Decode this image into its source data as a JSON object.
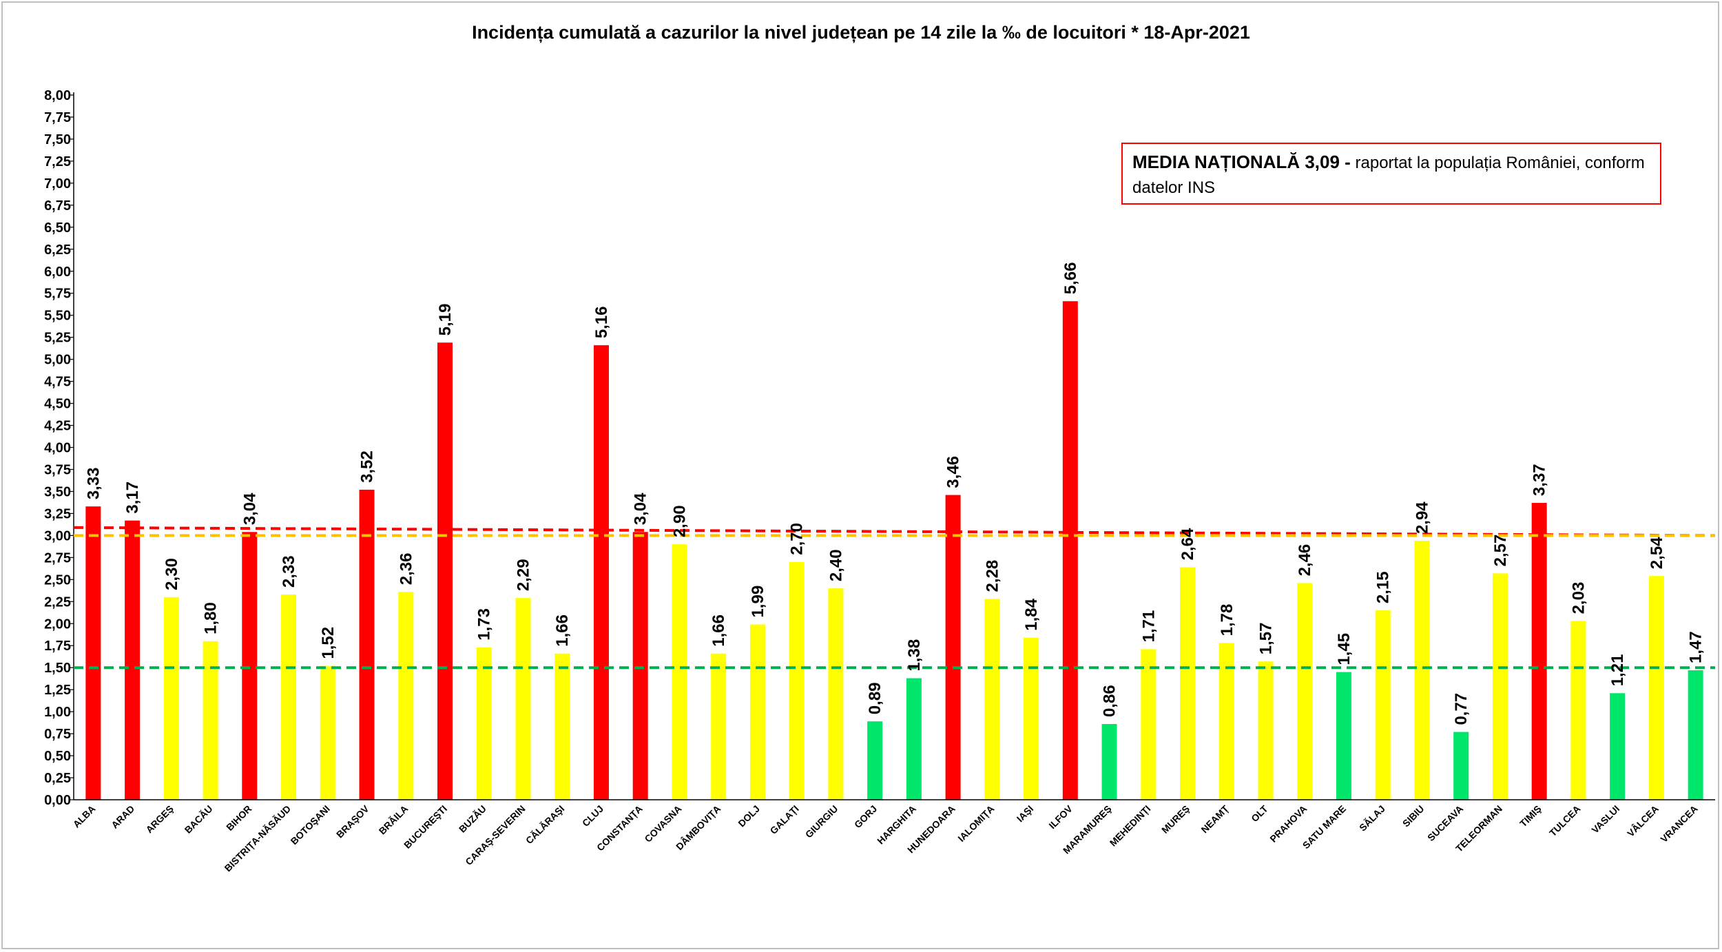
{
  "chart_data": {
    "type": "bar",
    "title": "Incidența cumulată a cazurilor la nivel județean pe 14 zile   la ‰ de locuitori  *   18-Apr-2021",
    "xlabel": "",
    "ylabel": "",
    "ylim": [
      0,
      8
    ],
    "yticks": [
      "0,00",
      "0,25",
      "0,50",
      "0,75",
      "1,00",
      "1,25",
      "1,50",
      "1,75",
      "2,00",
      "2,25",
      "2,50",
      "2,75",
      "3,00",
      "3,25",
      "3,50",
      "3,75",
      "4,00",
      "4,25",
      "4,50",
      "4,75",
      "5,00",
      "5,25",
      "5,50",
      "5,75",
      "6,00",
      "6,25",
      "6,50",
      "6,75",
      "7,00",
      "7,25",
      "7,50",
      "7,75",
      "8,00"
    ],
    "grid": false,
    "legend": "none",
    "categories": [
      "ALBA",
      "ARAD",
      "ARGEŞ",
      "BACĂU",
      "BIHOR",
      "BISTRIȚA-NĂSĂUD",
      "BOTOŞANI",
      "BRAŞOV",
      "BRĂILA",
      "BUCUREŞTI",
      "BUZĂU",
      "CARAŞ-SEVERIN",
      "CĂLĂRAŞI",
      "CLUJ",
      "CONSTANȚA",
      "COVASNA",
      "DÂMBOVIȚA",
      "DOLJ",
      "GALAȚI",
      "GIURGIU",
      "GORJ",
      "HARGHITA",
      "HUNEDOARA",
      "IALOMIȚA",
      "IAŞI",
      "ILFOV",
      "MARAMUREŞ",
      "MEHEDINȚI",
      "MUREŞ",
      "NEAMȚ",
      "OLT",
      "PRAHOVA",
      "SATU MARE",
      "SĂLAJ",
      "SIBIU",
      "SUCEAVA",
      "TELEORMAN",
      "TIMIŞ",
      "TULCEA",
      "VASLUI",
      "VÂLCEA",
      "VRANCEA"
    ],
    "values": [
      3.33,
      3.17,
      2.3,
      1.8,
      3.04,
      2.33,
      1.52,
      3.52,
      2.36,
      5.19,
      1.73,
      2.29,
      1.66,
      5.16,
      3.04,
      2.9,
      1.66,
      1.99,
      2.7,
      2.4,
      0.89,
      1.38,
      3.46,
      2.28,
      1.84,
      5.66,
      0.86,
      1.71,
      2.64,
      1.78,
      1.57,
      2.46,
      1.45,
      2.15,
      2.94,
      0.77,
      2.57,
      3.37,
      2.03,
      1.21,
      2.54,
      1.47
    ],
    "value_labels": [
      "3,33",
      "3,17",
      "2,30",
      "1,80",
      "3,04",
      "2,33",
      "1,52",
      "3,52",
      "2,36",
      "5,19",
      "1,73",
      "2,29",
      "1,66",
      "5,16",
      "3,04",
      "2,90",
      "1,66",
      "1,99",
      "2,70",
      "2,40",
      "0,89",
      "1,38",
      "3,46",
      "2,28",
      "1,84",
      "5,66",
      "0,86",
      "1,71",
      "2,64",
      "1,78",
      "1,57",
      "2,46",
      "1,45",
      "2,15",
      "2,94",
      "0,77",
      "2,57",
      "3,37",
      "2,03",
      "1,21",
      "2,54",
      "1,47"
    ],
    "bar_colors": [
      "red",
      "red",
      "yellow",
      "yellow",
      "red",
      "yellow",
      "yellow",
      "red",
      "yellow",
      "red",
      "yellow",
      "yellow",
      "yellow",
      "red",
      "red",
      "yellow",
      "yellow",
      "yellow",
      "yellow",
      "yellow",
      "green",
      "green",
      "red",
      "yellow",
      "yellow",
      "red",
      "green",
      "yellow",
      "yellow",
      "yellow",
      "yellow",
      "yellow",
      "green",
      "yellow",
      "yellow",
      "green",
      "yellow",
      "red",
      "yellow",
      "green",
      "yellow",
      "green"
    ],
    "reference_lines": [
      {
        "y": 3.09,
        "color": "#ff0000",
        "style": "dashed",
        "slope_end": 3.0
      },
      {
        "y": 3.0,
        "color": "#ffc000",
        "style": "dashed"
      },
      {
        "y": 1.5,
        "color": "#00b050",
        "style": "dashed"
      }
    ]
  },
  "colors": {
    "red": "#ff0000",
    "yellow": "#ffff00",
    "green": "#00e66b"
  },
  "media_box": {
    "bold": "MEDIA NAȚIONALĂ 3,09 -",
    "text": " raportat la populația României, conform datelor INS"
  }
}
